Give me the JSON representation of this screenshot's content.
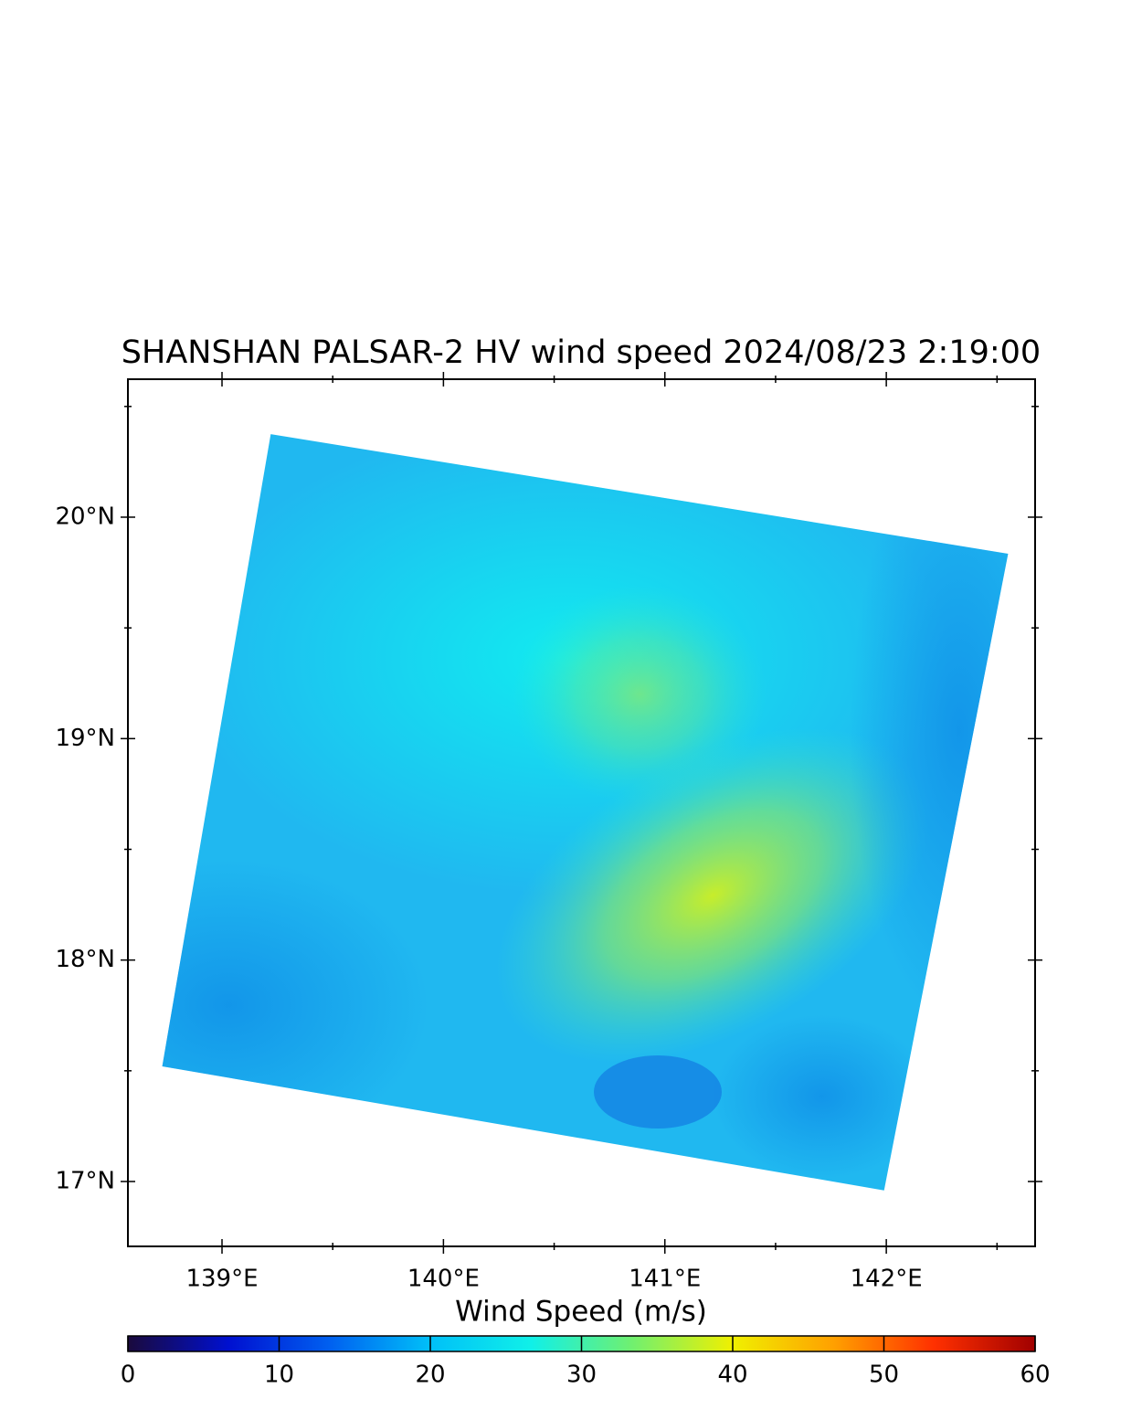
{
  "chart_data": {
    "type": "map",
    "title": "SHANSHAN  PALSAR-2 HV  wind speed 2024/08/23 2:19:00",
    "xlim": [
      138.575,
      142.672
    ],
    "ylim": [
      16.707,
      20.623
    ],
    "xticks": [
      {
        "value": 139,
        "label": "139°E"
      },
      {
        "value": 140,
        "label": "140°E"
      },
      {
        "value": 141,
        "label": "141°E"
      },
      {
        "value": 142,
        "label": "142°E"
      }
    ],
    "yticks": [
      {
        "value": 17,
        "label": "17°N"
      },
      {
        "value": 18,
        "label": "18°N"
      },
      {
        "value": 19,
        "label": "19°N"
      },
      {
        "value": 20,
        "label": "20°N"
      }
    ],
    "xminorticks": [
      139.5,
      140.5,
      141.5,
      142.5
    ],
    "yminorticks": [
      17.5,
      18.5,
      19.5,
      20.5
    ],
    "swath_corners": [
      [
        139.22,
        20.375
      ],
      [
        142.55,
        19.835
      ],
      [
        141.99,
        16.96
      ],
      [
        138.73,
        17.52
      ]
    ],
    "colorbar": {
      "label": "Wind Speed (m/s)",
      "lim": [
        0,
        60
      ],
      "ticks": [
        0,
        10,
        20,
        30,
        40,
        50,
        60
      ],
      "colormap": [
        "#1a0a3c",
        "#0010d0",
        "#0060f0",
        "#00c0f8",
        "#10f0e8",
        "#70f070",
        "#f0f000",
        "#ffa000",
        "#ff3000",
        "#a00000"
      ]
    }
  }
}
